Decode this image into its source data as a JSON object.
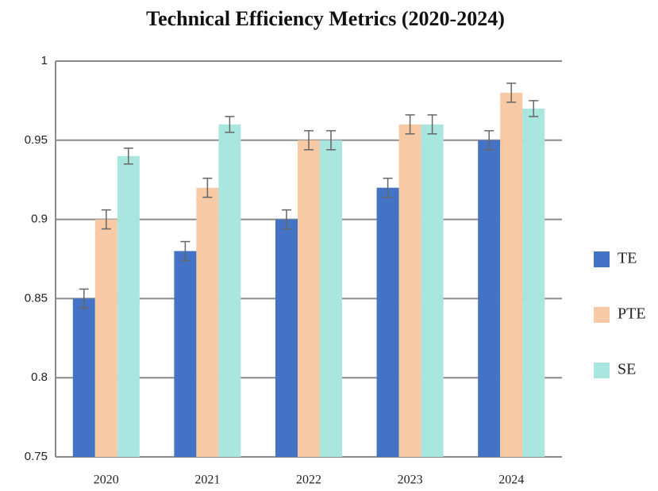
{
  "chart_data": {
    "type": "bar",
    "title": "Technical Efficiency Metrics (2020-2024)",
    "categories": [
      "2020",
      "2021",
      "2022",
      "2023",
      "2024"
    ],
    "series": [
      {
        "name": "TE",
        "color": "#4472c4",
        "values": [
          0.85,
          0.88,
          0.9,
          0.92,
          0.95
        ],
        "errors": [
          0.006,
          0.006,
          0.006,
          0.006,
          0.006
        ]
      },
      {
        "name": "PTE",
        "color": "#f7c9a5",
        "values": [
          0.9,
          0.92,
          0.95,
          0.96,
          0.98
        ],
        "errors": [
          0.006,
          0.006,
          0.006,
          0.006,
          0.006
        ]
      },
      {
        "name": "SE",
        "color": "#a8e6df",
        "values": [
          0.94,
          0.96,
          0.95,
          0.96,
          0.97
        ],
        "errors": [
          0.005,
          0.005,
          0.006,
          0.006,
          0.005
        ]
      }
    ],
    "ylim": [
      0.75,
      1
    ],
    "yticks": [
      0.75,
      0.8,
      0.85,
      0.9,
      0.95,
      1
    ],
    "grid": true,
    "legend": "right"
  }
}
